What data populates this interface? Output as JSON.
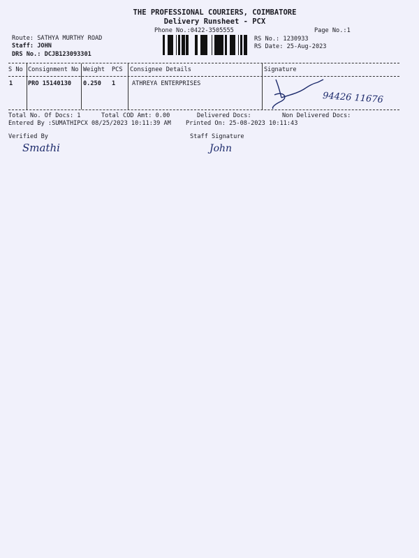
{
  "header": {
    "company": "THE PROFESSIONAL COURIERS, COIMBATORE",
    "sheet_title": "Delivery Runsheet - PCX",
    "phone": "Phone No.:0422-3505555",
    "page_no": "Page No.:1",
    "route": "Route: SATHYA MURTHY ROAD",
    "staff": "Staff: JOHN",
    "drs_no": "DRS No.: DCJB123093301",
    "rs_no": "RS No.: 1230933",
    "rs_date": "RS Date: 25-Aug-2023"
  },
  "table": {
    "columns": [
      "S No",
      "Consignment No",
      "Weight",
      "PCS",
      "Consignee Details",
      "Signature"
    ],
    "rows": [
      {
        "s_no": "1",
        "consignment_no": "PRO 15140130",
        "weight": "0.250",
        "pcs": "1",
        "consignee": "ATHREYA ENTERPRISES",
        "signature_phone": "94426 11676"
      }
    ]
  },
  "totals": {
    "total_docs": "Total No. Of Docs:   1",
    "total_cod": "Total COD Amt:    0.00",
    "delivered": "Delivered Docs:",
    "non_delivered": "Non Delivered Docs:",
    "entered_by": "Entered By :SUMATHIPCX 08/25/2023 10:11:39 AM",
    "printed_on": "Printed On: 25-08-2023 10:11:43"
  },
  "footer": {
    "verified_by": "Verified By",
    "verified_signature": "Smathi",
    "staff_signature_label": "Staff Signature",
    "staff_signature": "John"
  }
}
